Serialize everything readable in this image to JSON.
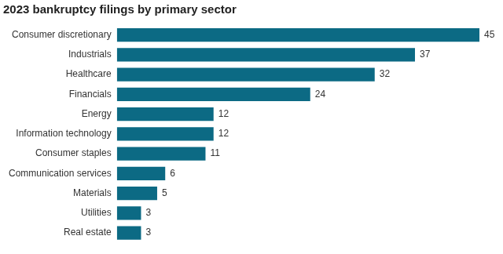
{
  "chart_data": {
    "type": "bar",
    "orientation": "horizontal",
    "title": "2023 bankruptcy filings by primary sector",
    "categories": [
      "Consumer discretionary",
      "Industrials",
      "Healthcare",
      "Financials",
      "Energy",
      "Information technology",
      "Consumer staples",
      "Communication services",
      "Materials",
      "Utilities",
      "Real estate"
    ],
    "values": [
      45,
      37,
      32,
      24,
      12,
      12,
      11,
      6,
      5,
      3,
      3
    ],
    "color": "#0c6a84",
    "xlim": [
      0,
      45
    ],
    "grid": false,
    "data_labels": true,
    "tick_labels": "y"
  }
}
